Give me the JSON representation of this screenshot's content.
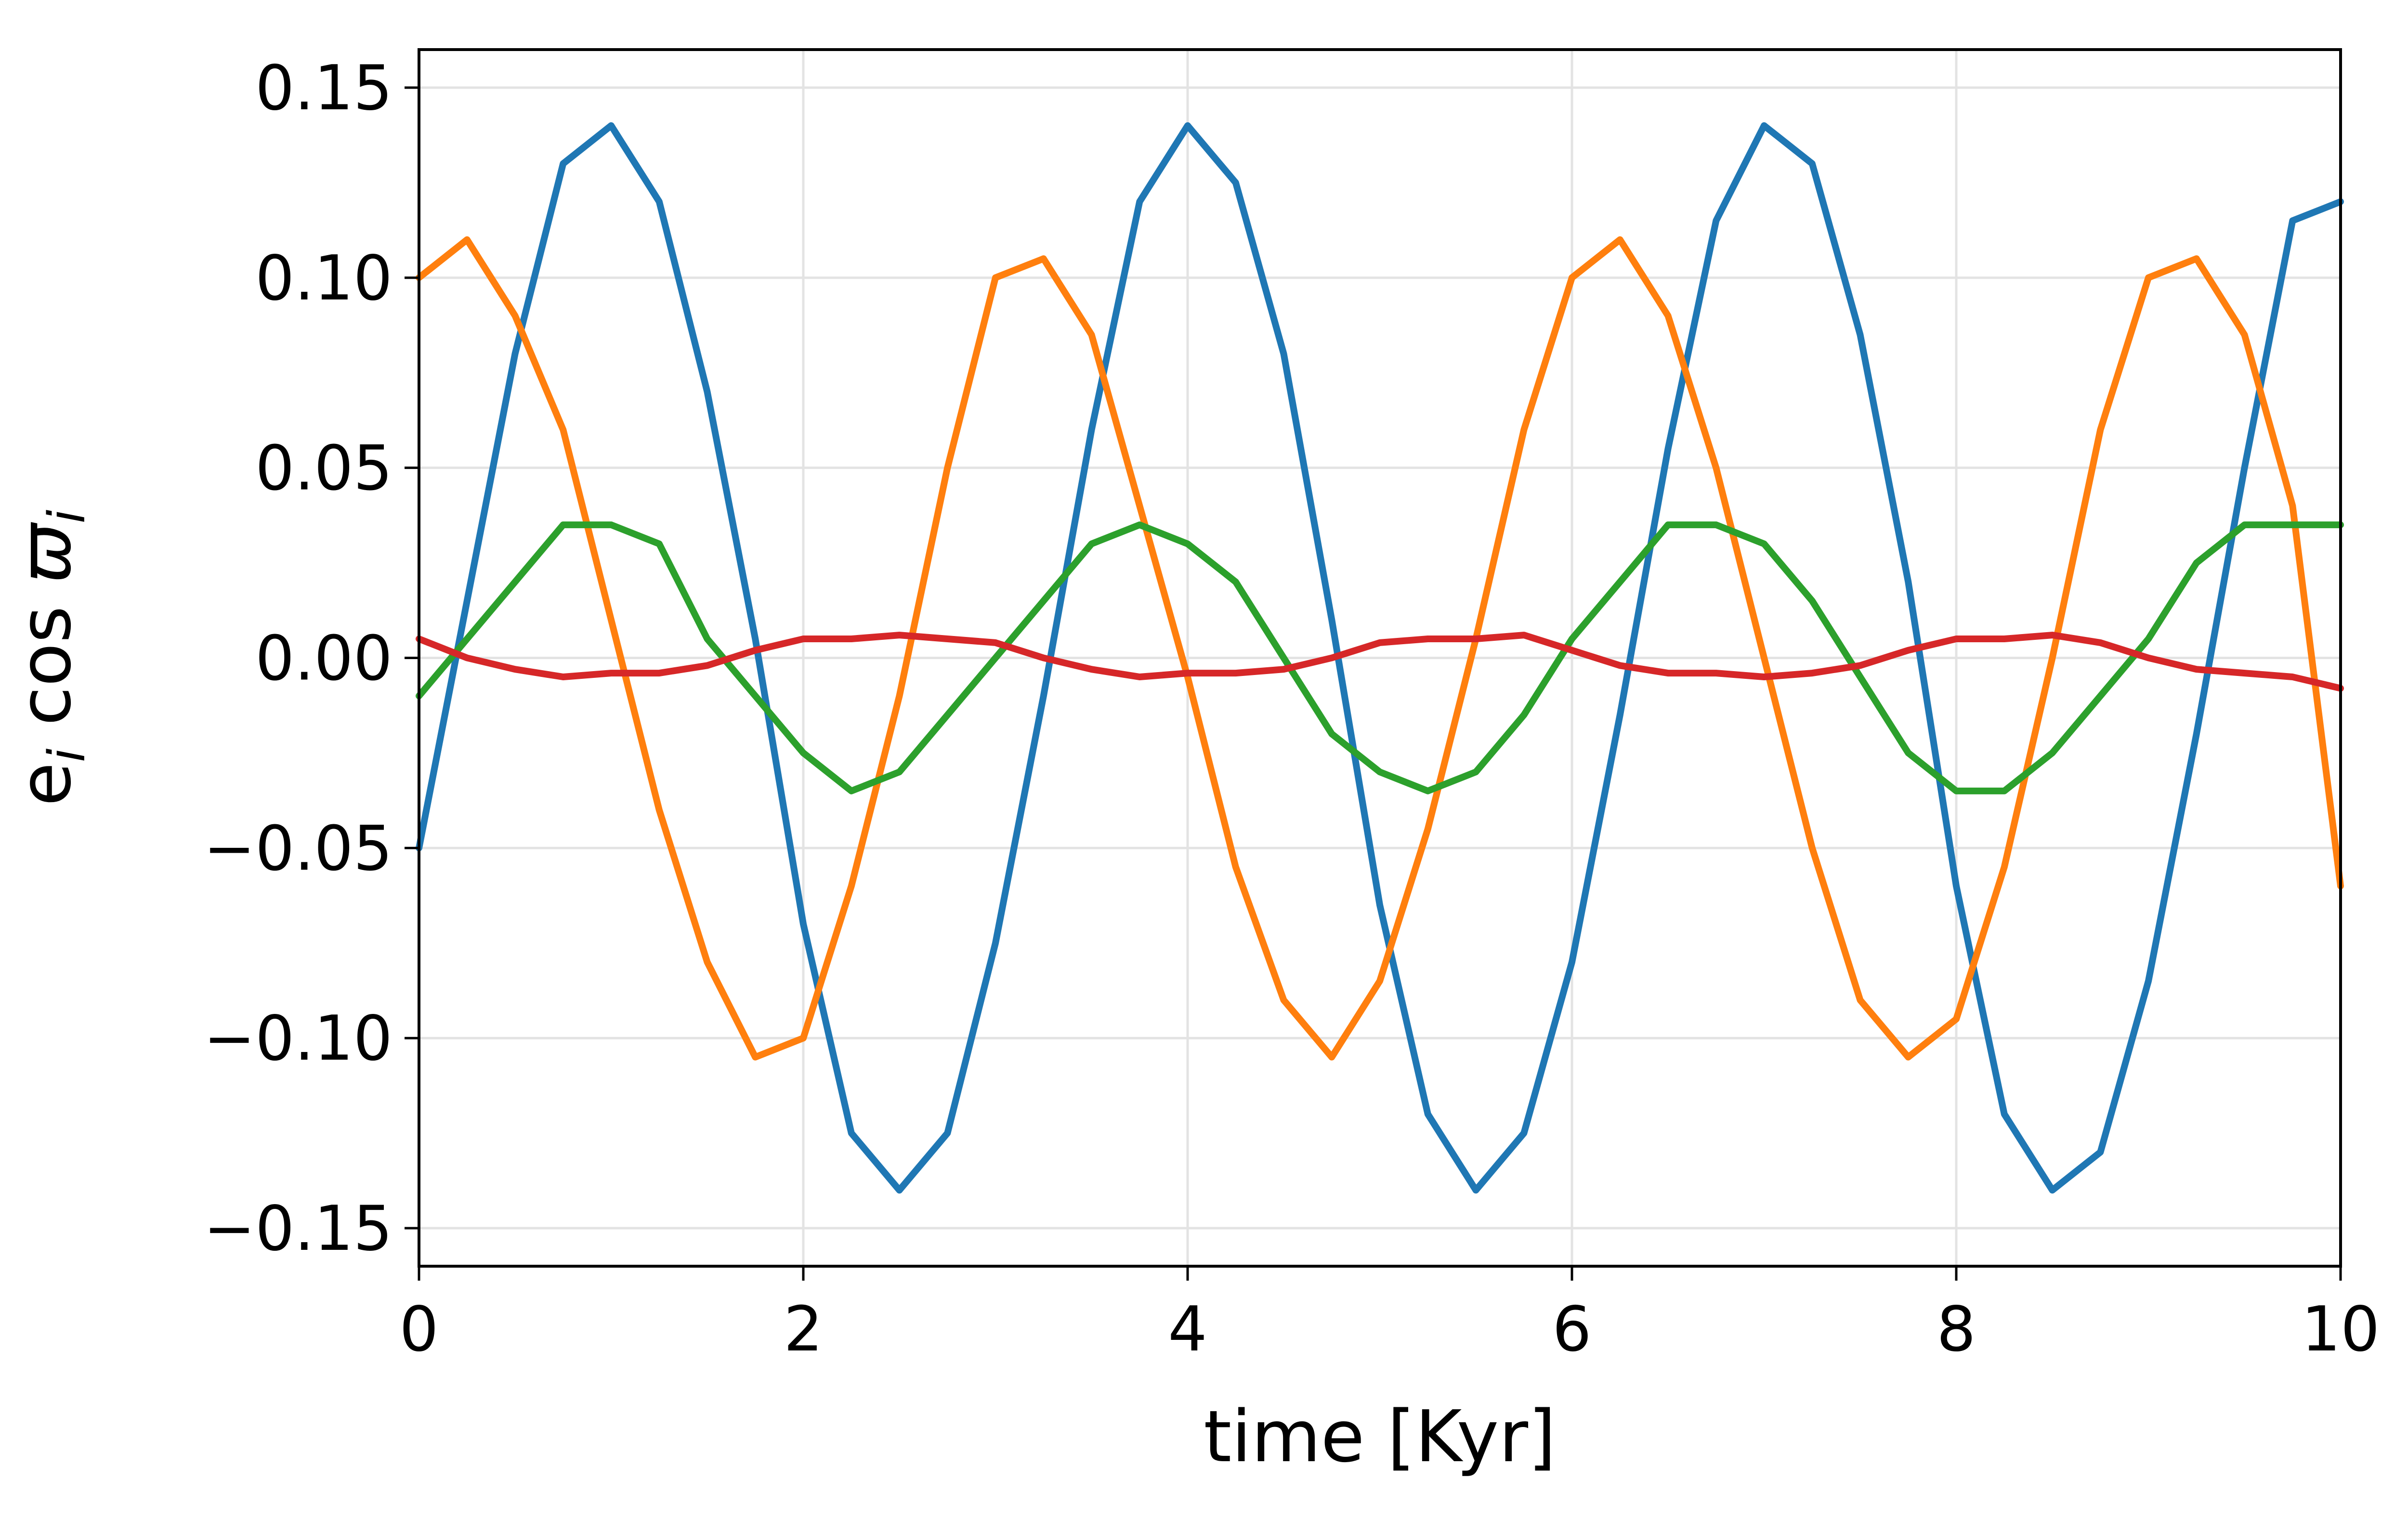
{
  "chart_data": {
    "type": "line",
    "title": "",
    "xlabel": "time [Kyr]",
    "ylabel_base": "e",
    "ylabel_sub": "i",
    "ylabel_func": " cos ",
    "ylabel_symbol": "ϖ",
    "xlim": [
      0,
      10
    ],
    "ylim": [
      -0.16,
      0.16
    ],
    "grid": true,
    "legend": "none",
    "x_ticks": [
      0,
      2,
      4,
      6,
      8,
      10
    ],
    "x_tick_labels": [
      "0",
      "2",
      "4",
      "6",
      "8",
      "10"
    ],
    "y_ticks": [
      -0.15,
      -0.1,
      -0.05,
      0.0,
      0.05,
      0.1,
      0.15
    ],
    "y_tick_labels": [
      "−0.15",
      "−0.10",
      "−0.05",
      "0.00",
      "0.05",
      "0.10",
      "0.15"
    ],
    "x": [
      0,
      0.25,
      0.5,
      0.75,
      1.0,
      1.25,
      1.5,
      1.75,
      2.0,
      2.25,
      2.5,
      2.75,
      3.0,
      3.25,
      3.5,
      3.75,
      4.0,
      4.25,
      4.5,
      4.75,
      5.0,
      5.25,
      5.5,
      5.75,
      6.0,
      6.25,
      6.5,
      6.75,
      7.0,
      7.25,
      7.5,
      7.75,
      8.0,
      8.25,
      8.5,
      8.75,
      9.0,
      9.25,
      9.5,
      9.75,
      10.0
    ],
    "series": [
      {
        "color": "#1f77b4",
        "values": [
          -0.05,
          0.015,
          0.08,
          0.13,
          0.14,
          0.12,
          0.07,
          0.005,
          -0.07,
          -0.125,
          -0.14,
          -0.125,
          -0.075,
          -0.01,
          0.06,
          0.12,
          0.14,
          0.125,
          0.08,
          0.01,
          -0.065,
          -0.12,
          -0.14,
          -0.125,
          -0.08,
          -0.015,
          0.055,
          0.115,
          0.14,
          0.13,
          0.085,
          0.02,
          -0.06,
          -0.12,
          -0.14,
          -0.13,
          -0.085,
          -0.02,
          0.05,
          0.115,
          0.12
        ]
      },
      {
        "color": "#ff7f0e",
        "values": [
          0.1,
          0.11,
          0.09,
          0.06,
          0.01,
          -0.04,
          -0.08,
          -0.105,
          -0.1,
          -0.06,
          -0.01,
          0.05,
          0.1,
          0.105,
          0.085,
          0.04,
          -0.005,
          -0.055,
          -0.09,
          -0.105,
          -0.085,
          -0.045,
          0.005,
          0.06,
          0.1,
          0.11,
          0.09,
          0.05,
          0.0,
          -0.05,
          -0.09,
          -0.105,
          -0.095,
          -0.055,
          0.0,
          0.06,
          0.1,
          0.105,
          0.085,
          0.04,
          -0.06
        ]
      },
      {
        "color": "#2ca02c",
        "values": [
          -0.01,
          0.005,
          0.02,
          0.035,
          0.035,
          0.03,
          0.005,
          -0.01,
          -0.025,
          -0.035,
          -0.03,
          -0.015,
          0.0,
          0.015,
          0.03,
          0.035,
          0.03,
          0.02,
          0.0,
          -0.02,
          -0.03,
          -0.035,
          -0.03,
          -0.015,
          0.005,
          0.02,
          0.035,
          0.035,
          0.03,
          0.015,
          -0.005,
          -0.025,
          -0.035,
          -0.035,
          -0.025,
          -0.01,
          0.005,
          0.025,
          0.035,
          0.035,
          0.035
        ]
      },
      {
        "color": "#d62728",
        "values": [
          0.005,
          0.0,
          -0.003,
          -0.005,
          -0.004,
          -0.004,
          -0.002,
          0.002,
          0.005,
          0.005,
          0.006,
          0.005,
          0.004,
          0.0,
          -0.003,
          -0.005,
          -0.004,
          -0.004,
          -0.003,
          0.0,
          0.004,
          0.005,
          0.005,
          0.006,
          0.002,
          -0.002,
          -0.004,
          -0.004,
          -0.005,
          -0.004,
          -0.002,
          0.002,
          0.005,
          0.005,
          0.006,
          0.004,
          0.0,
          -0.003,
          -0.004,
          -0.005,
          -0.008
        ]
      }
    ]
  }
}
